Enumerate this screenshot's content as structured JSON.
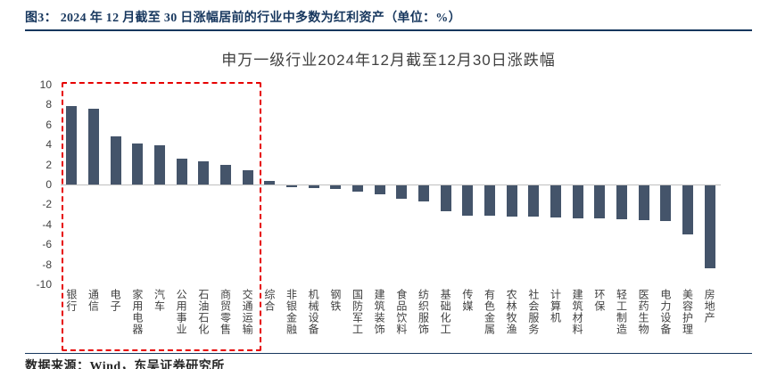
{
  "figure": {
    "caption": "图3： 2024 年 12 月截至 30 日涨幅居前的行业中多数为红利资产（单位：%）",
    "source": "数据来源：Wind，东吴证券研究所"
  },
  "chart_data": {
    "type": "bar",
    "title": "申万一级行业2024年12月截至12月30日涨跌幅",
    "categories": [
      "银行",
      "通信",
      "电子",
      "家用电器",
      "汽车",
      "公用事业",
      "石油石化",
      "商贸零售",
      "交通运输",
      "综合",
      "非银金融",
      "机械设备",
      "钢铁",
      "国防军工",
      "建筑装饰",
      "食品饮料",
      "纺织服饰",
      "基础化工",
      "传媒",
      "有色金属",
      "农林牧渔",
      "社会服务",
      "计算机",
      "建筑材料",
      "环保",
      "轻工制造",
      "医药生物",
      "电力设备",
      "美容护理",
      "房地产"
    ],
    "values": [
      7.9,
      7.6,
      4.8,
      4.1,
      3.9,
      2.6,
      2.3,
      2.0,
      1.4,
      0.4,
      -0.2,
      -0.3,
      -0.4,
      -0.6,
      -0.9,
      -1.3,
      -1.6,
      -2.6,
      -3.0,
      -3.0,
      -3.1,
      -3.1,
      -3.2,
      -3.3,
      -3.3,
      -3.4,
      -3.5,
      -3.6,
      -4.9,
      -8.3
    ],
    "xlabel": "",
    "ylabel": "",
    "ylim": [
      -10,
      10
    ],
    "ytick_interval": 2,
    "grid": false,
    "legend": null,
    "bar_color": "#44546A",
    "highlight_box": {
      "style": "dashed",
      "color": "#E60000",
      "from_index": 0,
      "to_index": 8,
      "note": "red dashed box highlighting top-gaining industries"
    }
  },
  "colors": {
    "caption_text": "#17375E",
    "rule": "#17375E",
    "axis_text": "#404040",
    "zero_line": "#BFBFBF",
    "background": "#FFFFFF"
  }
}
